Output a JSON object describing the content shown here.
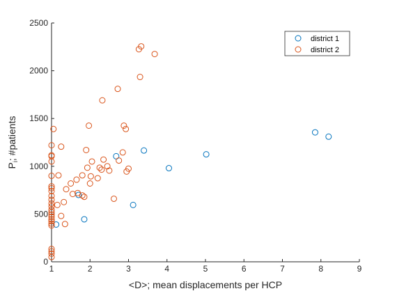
{
  "chart_data": {
    "type": "scatter",
    "title": "",
    "xlabel": "<D>; mean displacements per HCP",
    "ylabel_main": "P",
    "ylabel_sub": "i",
    "ylabel_rest": "; #patients",
    "xlim": [
      1,
      9
    ],
    "ylim": [
      0,
      2500
    ],
    "xticks": [
      "1",
      "2",
      "3",
      "4",
      "5",
      "6",
      "7",
      "8",
      "9"
    ],
    "yticks": [
      "0",
      "500",
      "1000",
      "1500",
      "2000",
      "2500"
    ],
    "grid": false,
    "box": false,
    "legend_position": "top-right",
    "series": [
      {
        "name": "district 1",
        "color": "#0072BD",
        "marker": "circle-open",
        "points": [
          [
            1.12,
            390
          ],
          [
            1.7,
            700
          ],
          [
            1.85,
            445
          ],
          [
            2.68,
            1105
          ],
          [
            3.12,
            595
          ],
          [
            3.4,
            1165
          ],
          [
            4.05,
            980
          ],
          [
            5.02,
            1125
          ],
          [
            7.85,
            1355
          ],
          [
            8.2,
            1310
          ]
        ]
      },
      {
        "name": "district 2",
        "color": "#D95319",
        "marker": "circle-open",
        "points": [
          [
            1.0,
            50
          ],
          [
            1.0,
            85
          ],
          [
            1.0,
            110
          ],
          [
            1.0,
            135
          ],
          [
            1.0,
            380
          ],
          [
            1.0,
            400
          ],
          [
            1.0,
            425
          ],
          [
            1.0,
            445
          ],
          [
            1.0,
            470
          ],
          [
            1.0,
            495
          ],
          [
            1.0,
            520
          ],
          [
            1.0,
            545
          ],
          [
            1.0,
            580
          ],
          [
            1.0,
            610
          ],
          [
            1.0,
            650
          ],
          [
            1.0,
            690
          ],
          [
            1.0,
            740
          ],
          [
            1.0,
            770
          ],
          [
            1.0,
            790
          ],
          [
            1.0,
            900
          ],
          [
            1.0,
            1050
          ],
          [
            1.0,
            1105
          ],
          [
            1.0,
            1115
          ],
          [
            1.0,
            1220
          ],
          [
            1.05,
            1390
          ],
          [
            1.15,
            595
          ],
          [
            1.18,
            905
          ],
          [
            1.25,
            480
          ],
          [
            1.25,
            1205
          ],
          [
            1.32,
            625
          ],
          [
            1.35,
            395
          ],
          [
            1.38,
            760
          ],
          [
            1.5,
            820
          ],
          [
            1.55,
            710
          ],
          [
            1.65,
            860
          ],
          [
            1.68,
            720
          ],
          [
            1.8,
            695
          ],
          [
            1.85,
            680
          ],
          [
            1.8,
            905
          ],
          [
            1.9,
            1170
          ],
          [
            1.93,
            985
          ],
          [
            1.97,
            1425
          ],
          [
            2.0,
            820
          ],
          [
            2.02,
            895
          ],
          [
            2.05,
            1050
          ],
          [
            2.2,
            875
          ],
          [
            2.25,
            985
          ],
          [
            2.3,
            965
          ],
          [
            2.32,
            1690
          ],
          [
            2.35,
            1070
          ],
          [
            2.45,
            1000
          ],
          [
            2.5,
            955
          ],
          [
            2.62,
            660
          ],
          [
            2.72,
            1810
          ],
          [
            2.75,
            1060
          ],
          [
            2.85,
            1145
          ],
          [
            2.88,
            1425
          ],
          [
            2.93,
            1390
          ],
          [
            2.95,
            945
          ],
          [
            3.0,
            975
          ],
          [
            3.27,
            2225
          ],
          [
            3.3,
            1935
          ],
          [
            3.33,
            2255
          ],
          [
            3.68,
            2175
          ]
        ]
      }
    ]
  }
}
